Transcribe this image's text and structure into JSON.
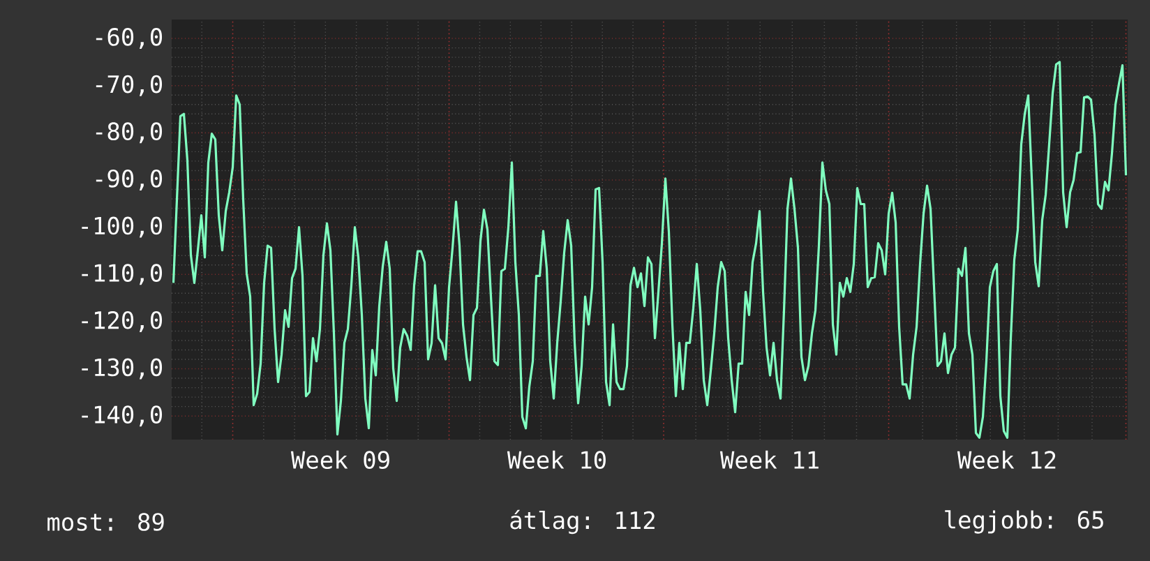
{
  "chart_data": {
    "type": "line",
    "ylim": [
      -145,
      -56
    ],
    "categories": [
      null,
      null,
      null,
      null,
      null,
      null,
      null,
      null,
      null,
      null,
      null,
      null,
      null,
      null,
      null,
      null,
      null,
      null,
      null,
      null,
      null,
      null,
      null,
      null,
      null,
      null,
      null,
      null,
      null,
      null,
      null,
      null,
      null,
      null,
      null,
      null,
      null,
      null,
      null,
      null,
      null,
      null,
      null,
      null,
      null,
      null,
      null,
      null,
      "Week 09",
      null,
      null,
      null,
      null,
      null,
      null,
      null,
      null,
      null,
      null,
      null,
      null,
      null,
      null,
      null,
      null,
      null,
      null,
      null,
      null,
      null,
      null,
      null,
      null,
      null,
      null,
      null,
      null,
      null,
      null,
      null,
      null,
      null,
      null,
      null,
      null,
      null,
      null,
      null,
      null,
      null,
      null,
      null,
      null,
      null,
      null,
      null,
      null,
      null,
      null,
      null,
      null,
      null,
      null,
      null,
      null,
      null,
      null,
      null,
      null,
      null,
      "Week 10",
      null,
      null,
      null,
      null,
      null,
      null,
      null,
      null,
      null,
      null,
      null,
      null,
      null,
      null,
      null,
      null,
      null,
      null,
      null,
      null,
      null,
      null,
      null,
      null,
      null,
      null,
      null,
      null,
      null,
      null,
      null,
      null,
      null,
      null,
      null,
      null,
      null,
      null,
      null,
      null,
      null,
      null,
      null,
      null,
      null,
      null,
      null,
      null,
      null,
      null,
      null,
      null,
      null,
      null,
      null,
      null,
      null,
      null,
      null,
      null,
      "Week 11",
      null,
      null,
      null,
      null,
      null,
      null,
      null,
      null,
      null,
      null,
      null,
      null,
      null,
      null,
      null,
      null,
      null,
      null,
      null,
      null,
      null,
      null,
      null,
      null,
      null,
      null,
      null,
      null,
      null,
      null,
      null,
      null,
      null,
      null,
      null,
      null,
      null,
      null,
      null,
      null,
      null,
      null,
      null,
      null,
      null,
      null,
      null,
      null,
      null,
      null,
      null,
      null,
      null,
      null,
      null,
      null,
      null,
      null,
      null,
      null,
      null,
      null,
      null,
      null,
      null,
      null,
      null,
      "Week 12",
      null,
      null,
      null,
      null,
      null,
      null,
      null,
      null,
      null,
      null,
      null,
      null,
      null,
      null,
      null,
      null,
      null,
      null,
      null,
      null,
      null,
      null,
      null,
      null,
      null,
      null,
      null,
      null,
      null,
      null,
      null,
      null,
      null,
      null
    ],
    "yticks": [
      {
        "value": -60,
        "label": "-60,0"
      },
      {
        "value": -70,
        "label": "-70,0"
      },
      {
        "value": -80,
        "label": "-80,0"
      },
      {
        "value": -90,
        "label": "-90,0"
      },
      {
        "value": -100,
        "label": "-100,0"
      },
      {
        "value": -110,
        "label": "-110,0"
      },
      {
        "value": -120,
        "label": "-120,0"
      },
      {
        "value": -130,
        "label": "-130,0"
      },
      {
        "value": -140,
        "label": "-140,0"
      }
    ],
    "grid": true,
    "line_style": "solid",
    "annotations": [
      "most: 89",
      "átlag: 112",
      "legjobb: 65"
    ],
    "series": [
      {
        "color": "#80ffc0",
        "values": [
          -111.8,
          -94.1,
          -76.5,
          -76.0,
          -85.8,
          -105.9,
          -111.8,
          -104.9,
          -97.5,
          -106.4,
          -86.3,
          -80.2,
          -81.4,
          -97.5,
          -104.9,
          -96.6,
          -92.6,
          -87.3,
          -72.1,
          -74.0,
          -94.1,
          -109.8,
          -114.7,
          -137.7,
          -135.3,
          -128.9,
          -111.8,
          -103.9,
          -104.4,
          -121.6,
          -132.8,
          -127.0,
          -117.6,
          -121.1,
          -110.8,
          -108.8,
          -100.0,
          -110.3,
          -135.8,
          -134.9,
          -123.5,
          -128.4,
          -121.6,
          -105.9,
          -99.2,
          -104.9,
          -122.5,
          -143.9,
          -136.8,
          -124.5,
          -121.6,
          -112.3,
          -100.0,
          -106.4,
          -118.6,
          -136.3,
          -142.6,
          -126.0,
          -131.4,
          -116.7,
          -108.3,
          -103.1,
          -108.8,
          -129.9,
          -136.8,
          -125.5,
          -121.6,
          -123.0,
          -126.0,
          -112.3,
          -105.1,
          -105.1,
          -107.4,
          -128.0,
          -124.6,
          -112.3,
          -123.5,
          -124.6,
          -128.0,
          -112.7,
          -104.4,
          -94.6,
          -103.9,
          -120.6,
          -127.5,
          -132.4,
          -118.6,
          -117.1,
          -102.9,
          -96.3,
          -100.5,
          -114.7,
          -128.4,
          -129.2,
          -109.3,
          -108.8,
          -100.0,
          -86.3,
          -107.4,
          -118.6,
          -140.2,
          -142.6,
          -133.8,
          -128.4,
          -110.3,
          -110.3,
          -100.8,
          -108.8,
          -128.4,
          -136.3,
          -124.5,
          -115.7,
          -105.4,
          -98.5,
          -103.9,
          -124.5,
          -137.3,
          -129.4,
          -114.7,
          -120.6,
          -112.7,
          -92.0,
          -91.7,
          -107.4,
          -132.8,
          -137.7,
          -120.6,
          -132.8,
          -134.3,
          -134.3,
          -129.4,
          -112.3,
          -108.6,
          -112.7,
          -109.8,
          -116.7,
          -106.4,
          -107.8,
          -123.5,
          -113.7,
          -103.4,
          -89.7,
          -101.0,
          -120.6,
          -135.8,
          -124.5,
          -134.3,
          -124.5,
          -124.5,
          -117.2,
          -107.8,
          -117.6,
          -132.4,
          -137.7,
          -130.4,
          -122.5,
          -112.7,
          -107.4,
          -109.3,
          -123.5,
          -132.4,
          -139.2,
          -128.9,
          -128.9,
          -113.7,
          -118.6,
          -107.4,
          -103.4,
          -96.6,
          -113.7,
          -125.5,
          -131.4,
          -124.5,
          -132.4,
          -136.3,
          -117.6,
          -96.1,
          -89.7,
          -96.1,
          -104.4,
          -127.5,
          -132.4,
          -129.4,
          -122.5,
          -117.6,
          -103.9,
          -86.3,
          -92.2,
          -95.1,
          -120.6,
          -127.0,
          -111.8,
          -114.7,
          -110.8,
          -113.7,
          -107.8,
          -91.7,
          -95.1,
          -95.1,
          -112.7,
          -110.8,
          -110.6,
          -103.4,
          -104.9,
          -110.0,
          -97.1,
          -92.7,
          -99.0,
          -121.1,
          -133.3,
          -133.3,
          -136.3,
          -127.0,
          -121.1,
          -107.8,
          -97.1,
          -91.2,
          -96.1,
          -112.7,
          -129.4,
          -128.4,
          -122.5,
          -130.9,
          -127.0,
          -125.5,
          -108.8,
          -110.3,
          -104.4,
          -122.5,
          -127.0,
          -143.6,
          -144.6,
          -140.2,
          -128.4,
          -112.7,
          -109.3,
          -107.8,
          -135.8,
          -143.2,
          -144.6,
          -123.5,
          -106.9,
          -100.5,
          -82.4,
          -76.0,
          -72.1,
          -89.7,
          -107.4,
          -112.5,
          -98.5,
          -93.1,
          -82.4,
          -71.6,
          -65.5,
          -65.0,
          -92.6,
          -100.0,
          -92.6,
          -90.0,
          -84.3,
          -84.1,
          -72.5,
          -72.3,
          -73.0,
          -80.4,
          -95.1,
          -96.1,
          -90.4,
          -92.2,
          -84.3,
          -74.0,
          -69.6,
          -65.7,
          -89.0
        ]
      }
    ]
  }
}
